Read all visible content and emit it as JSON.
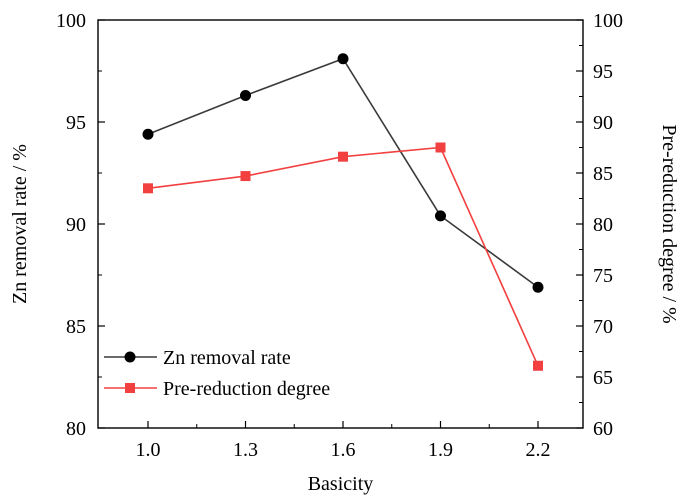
{
  "chart_data": {
    "type": "line",
    "title": "",
    "xlabel": "Basicity",
    "ylabel_left": "Zn removal rate / %",
    "ylabel_right": "Pre-reduction degree / %",
    "categories": [
      "1.0",
      "1.3",
      "1.6",
      "1.9",
      "2.2"
    ],
    "y_left_ticks": [
      "80",
      "85",
      "90",
      "95",
      "100"
    ],
    "y_right_ticks": [
      "60",
      "65",
      "70",
      "75",
      "80",
      "85",
      "90",
      "95",
      "100"
    ],
    "ylim_left": [
      80,
      100
    ],
    "ylim_right": [
      60,
      100
    ],
    "grid": false,
    "legend_position": "bottom-left",
    "series": [
      {
        "name": "Zn removal rate",
        "axis": "left",
        "marker": "circle",
        "color": "#3a3a3a",
        "marker_color": "#000000",
        "values": [
          94.4,
          96.3,
          98.1,
          90.4,
          86.9
        ]
      },
      {
        "name": "Pre-reduction degree",
        "axis": "right",
        "marker": "square",
        "color": "#f24040",
        "marker_color": "#f24040",
        "values": [
          83.5,
          84.7,
          86.6,
          87.5,
          66.1
        ]
      }
    ]
  }
}
